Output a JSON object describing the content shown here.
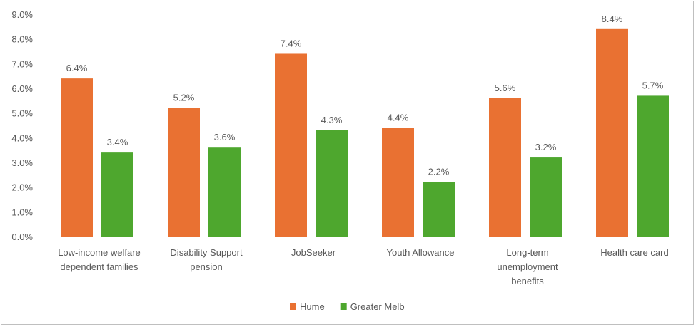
{
  "chart_data": {
    "type": "bar",
    "title": "",
    "xlabel": "",
    "ylabel": "",
    "ylim": [
      0,
      9
    ],
    "yticks": [
      "0.0%",
      "1.0%",
      "2.0%",
      "3.0%",
      "4.0%",
      "5.0%",
      "6.0%",
      "7.0%",
      "8.0%",
      "9.0%"
    ],
    "grid": false,
    "legend_position": "bottom",
    "categories": [
      [
        "Low-income welfare",
        "dependent families"
      ],
      [
        "Disability Support",
        "pension"
      ],
      [
        "JobSeeker"
      ],
      [
        "Youth Allowance"
      ],
      [
        "Long-term",
        "unemployment",
        "benefits"
      ],
      [
        "Health care card"
      ]
    ],
    "series": [
      {
        "name": "Hume",
        "color": "#E97132",
        "values": [
          6.4,
          5.2,
          7.4,
          4.4,
          5.6,
          8.4
        ],
        "labels": [
          "6.4%",
          "5.2%",
          "7.4%",
          "4.4%",
          "5.6%",
          "8.4%"
        ]
      },
      {
        "name": "Greater Melb",
        "color": "#4EA72E",
        "values": [
          3.4,
          3.6,
          4.3,
          2.2,
          3.2,
          5.7
        ],
        "labels": [
          "3.4%",
          "3.6%",
          "4.3%",
          "2.2%",
          "3.2%",
          "5.7%"
        ]
      }
    ]
  }
}
